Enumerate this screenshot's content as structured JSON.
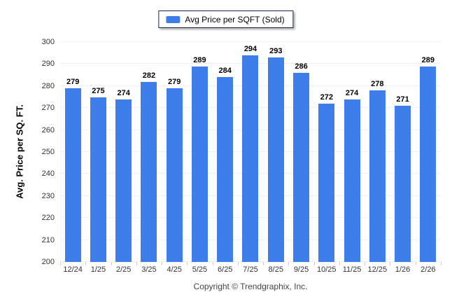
{
  "legend": {
    "label": "Avg Price per SQFT (Sold)"
  },
  "chart_data": {
    "type": "bar",
    "title": "Avg Price per SQFT (Sold)",
    "categories": [
      "12/24",
      "1/25",
      "2/25",
      "3/25",
      "4/25",
      "5/25",
      "6/25",
      "7/25",
      "8/25",
      "9/25",
      "10/25",
      "11/25",
      "12/25",
      "1/26",
      "2/26"
    ],
    "values": [
      279,
      275,
      274,
      282,
      279,
      289,
      284,
      294,
      293,
      286,
      272,
      274,
      278,
      271,
      289
    ],
    "xlabel": "",
    "ylabel": "Avg. Price per SQ. FT.",
    "ylim": [
      200,
      300
    ],
    "yticks": [
      200,
      210,
      220,
      230,
      240,
      250,
      260,
      270,
      280,
      290,
      300
    ],
    "grid": true,
    "legend_position": "top-center",
    "value_labels": true
  },
  "footer": {
    "copyright": "Copyright © Trendgraphix, Inc."
  },
  "colors": {
    "bar": "#3e7eeb",
    "grid": "#efefef",
    "axis_text": "#333333",
    "legend_border": "#1a2b49",
    "background": "#ffffff"
  }
}
